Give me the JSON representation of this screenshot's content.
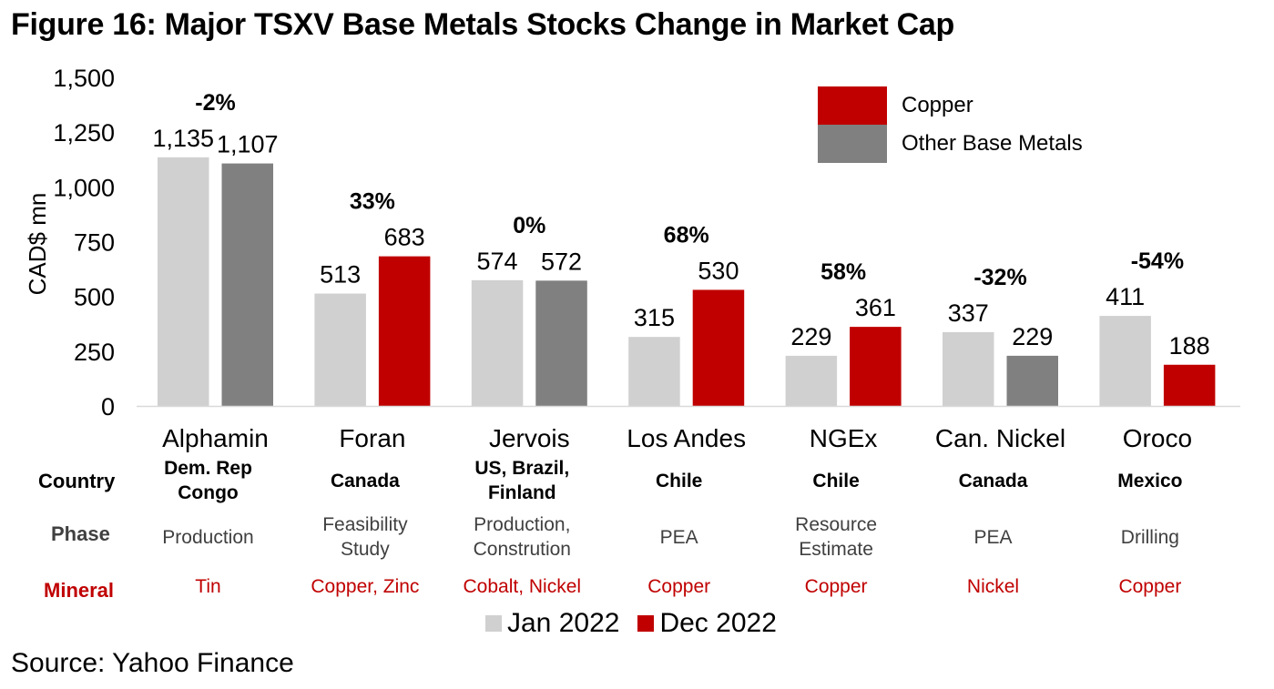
{
  "title": "Figure 16: Major TSXV Base Metals Stocks Change in Market Cap",
  "source": "Source: Yahoo Finance",
  "colors": {
    "jan": "#D0D0D0",
    "copper": "#C00000",
    "other_base_metals": "#808080",
    "mineral_text": "#C00000",
    "phase_text": "#404040"
  },
  "chart_data": {
    "type": "bar",
    "title": "Figure 16: Major TSXV Base Metals Stocks Change in Market Cap",
    "xlabel": "",
    "ylabel": "CAD$ mn",
    "ylim": [
      0,
      1500
    ],
    "yticks": [
      0,
      250,
      500,
      750,
      1000,
      1250,
      1500
    ],
    "ytick_labels": [
      "0",
      "250",
      "500",
      "750",
      "1,000",
      "1,250",
      "1,500"
    ],
    "grid": false,
    "categories": [
      "Alphamin",
      "Foran",
      "Jervois",
      "Los Andes",
      "NGEx",
      "Can. Nickel",
      "Oroco"
    ],
    "series": [
      {
        "name": "Jan 2022",
        "values": [
          1135,
          513,
          574,
          315,
          229,
          337,
          411
        ],
        "labels": [
          "1,135",
          "513",
          "574",
          "315",
          "229",
          "337",
          "411"
        ]
      },
      {
        "name": "Dec 2022",
        "values": [
          1107,
          683,
          572,
          530,
          361,
          229,
          188
        ],
        "labels": [
          "1,107",
          "683",
          "572",
          "530",
          "361",
          "229",
          "188"
        ],
        "metal_type": [
          "Other Base Metals",
          "Copper",
          "Other Base Metals",
          "Copper",
          "Copper",
          "Other Base Metals",
          "Copper"
        ]
      }
    ],
    "pct_change": [
      "-2%",
      "33%",
      "0%",
      "68%",
      "58%",
      "-32%",
      "-54%"
    ],
    "legend": {
      "bottom": [
        "Jan 2022",
        "Dec 2022"
      ],
      "top": [
        "Copper",
        "Other Base Metals"
      ],
      "bottom_placement": "bottom-center",
      "top_placement": "top-right"
    }
  },
  "table": {
    "row_labels": {
      "country": "Country",
      "phase": "Phase",
      "mineral": "Mineral"
    },
    "country": [
      [
        "Dem. Rep",
        "Congo"
      ],
      [
        "Canada"
      ],
      [
        "US, Brazil,",
        "Finland"
      ],
      [
        "Chile"
      ],
      [
        "Chile"
      ],
      [
        "Canada"
      ],
      [
        "Mexico"
      ]
    ],
    "phase": [
      [
        "Production"
      ],
      [
        "Feasibility",
        "Study"
      ],
      [
        "Production,",
        "Constrution"
      ],
      [
        "PEA"
      ],
      [
        "Resource",
        "Estimate"
      ],
      [
        "PEA"
      ],
      [
        "Drilling"
      ]
    ],
    "mineral": [
      "Tin",
      "Copper, Zinc",
      "Cobalt, Nickel",
      "Copper",
      "Copper",
      "Nickel",
      "Copper"
    ]
  }
}
